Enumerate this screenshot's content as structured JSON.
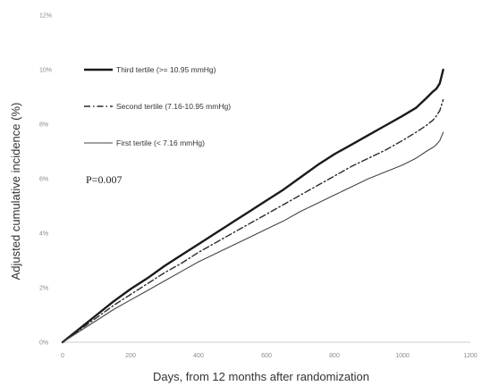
{
  "chart_data": {
    "type": "line",
    "xlabel": "Days, from 12 months after randomization",
    "ylabel": "Adjusted cumulative incidence (%)",
    "xlim": [
      0,
      1200
    ],
    "ylim": [
      0,
      12
    ],
    "x_ticks": [
      0,
      200,
      400,
      600,
      800,
      1000,
      1200
    ],
    "x_tick_labels": [
      "0",
      "200",
      "400",
      "600",
      "800",
      "1000",
      "1200"
    ],
    "y_ticks": [
      0,
      2,
      4,
      6,
      8,
      10,
      12
    ],
    "y_tick_labels": [
      "0%",
      "2%",
      "4%",
      "6%",
      "8%",
      "10%",
      "12%"
    ],
    "grid": false,
    "legend_position": "top-left",
    "annotation": "P=0.007",
    "series": [
      {
        "name": "Third tertile (>= 10.95 mmHg)",
        "color": "#1a1a1a",
        "style": "solid-thick",
        "x": [
          0,
          50,
          100,
          150,
          200,
          250,
          300,
          350,
          400,
          450,
          500,
          550,
          600,
          650,
          700,
          750,
          800,
          850,
          900,
          950,
          1000,
          1040,
          1070,
          1090,
          1100,
          1110,
          1120
        ],
        "y": [
          0,
          0.5,
          1.0,
          1.5,
          1.95,
          2.35,
          2.8,
          3.2,
          3.6,
          4.0,
          4.4,
          4.8,
          5.2,
          5.6,
          6.05,
          6.5,
          6.9,
          7.25,
          7.6,
          7.95,
          8.3,
          8.6,
          8.95,
          9.2,
          9.3,
          9.5,
          10.0
        ]
      },
      {
        "name": "Second tertile (7.16-10.95 mmHg)",
        "color": "#2a2a2a",
        "style": "dash-dot",
        "x": [
          0,
          50,
          100,
          150,
          200,
          250,
          300,
          350,
          400,
          450,
          500,
          550,
          600,
          650,
          700,
          750,
          800,
          850,
          900,
          950,
          1000,
          1040,
          1070,
          1090,
          1100,
          1110,
          1120
        ],
        "y": [
          0,
          0.45,
          0.9,
          1.35,
          1.75,
          2.15,
          2.55,
          2.9,
          3.3,
          3.65,
          4.0,
          4.35,
          4.7,
          5.05,
          5.4,
          5.75,
          6.1,
          6.45,
          6.75,
          7.05,
          7.4,
          7.7,
          7.95,
          8.15,
          8.3,
          8.5,
          8.9
        ]
      },
      {
        "name": "First tertile (< 7.16 mmHg)",
        "color": "#444444",
        "style": "solid-thin",
        "x": [
          0,
          50,
          100,
          150,
          200,
          250,
          300,
          350,
          400,
          450,
          500,
          550,
          600,
          650,
          700,
          750,
          800,
          850,
          900,
          950,
          1000,
          1040,
          1070,
          1090,
          1100,
          1110,
          1120
        ],
        "y": [
          0,
          0.4,
          0.8,
          1.2,
          1.55,
          1.9,
          2.25,
          2.6,
          2.95,
          3.25,
          3.55,
          3.85,
          4.15,
          4.45,
          4.8,
          5.1,
          5.4,
          5.7,
          6.0,
          6.25,
          6.5,
          6.75,
          7.0,
          7.15,
          7.25,
          7.4,
          7.7
        ]
      }
    ]
  }
}
